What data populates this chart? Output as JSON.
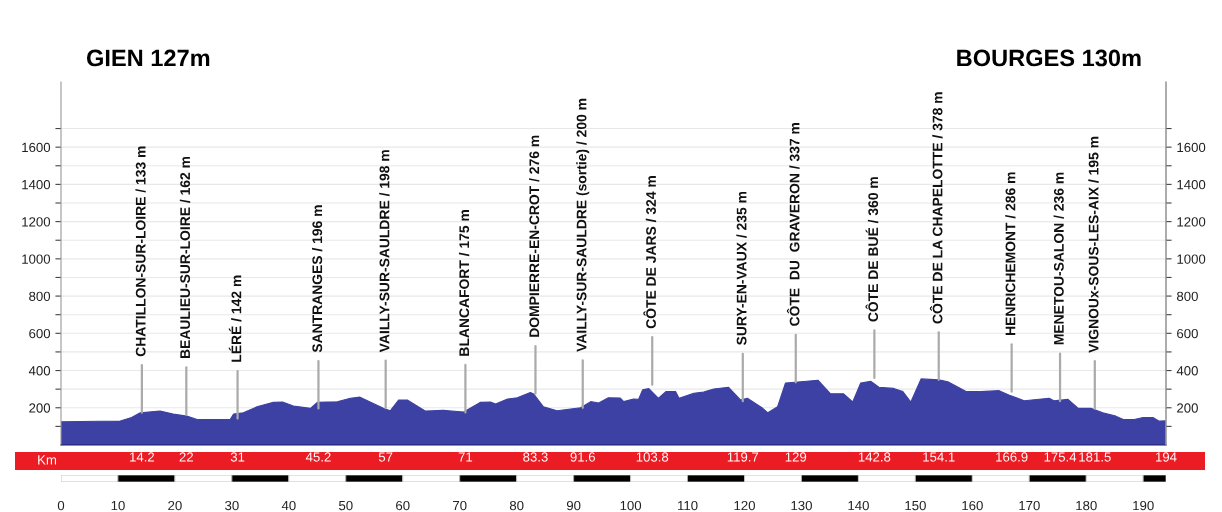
{
  "chart_data": {
    "type": "area",
    "x": [
      0,
      10.4,
      12.4,
      13.9,
      17.4,
      19.7,
      22.1,
      23.9,
      29.7,
      30.3,
      32,
      34.4,
      37.3,
      38.9,
      40.8,
      43.8,
      45,
      48.5,
      50.8,
      52.5,
      56.6,
      57.8,
      59.3,
      60.8,
      64,
      67.1,
      70.7,
      73.6,
      75.4,
      76.3,
      78.4,
      80.1,
      82.4,
      83,
      84.7,
      87.1,
      91.2,
      93,
      94.4,
      96.1,
      98.2,
      98.8,
      100.5,
      101.4,
      102.1,
      103.2,
      104.9,
      106.2,
      107.9,
      108.5,
      111.1,
      112.8,
      114.6,
      117.2,
      119.3,
      120.5,
      123.2,
      124.1,
      125.8,
      127.2,
      129.9,
      132.9,
      135.1,
      137.4,
      139,
      140.4,
      142.2,
      143.6,
      146.2,
      147.8,
      149.2,
      151,
      153.3,
      154.1,
      155.7,
      158.9,
      161.5,
      164.7,
      166.4,
      169.1,
      173.5,
      174.3,
      176.8,
      178.6,
      180.8,
      182.9,
      185.2,
      186.5,
      188.4,
      190,
      191.7,
      192.8,
      194
    ],
    "series": [
      {
        "color": "#3d41a3",
        "values": [
          125,
          129,
          148,
          173,
          182,
          166,
          155,
          137,
          137,
          166,
          173,
          205,
          229,
          231,
          209,
          197,
          229,
          232,
          251,
          257,
          197,
          184,
          242,
          242,
          182,
          186,
          177,
          229,
          231,
          220,
          247,
          254,
          282,
          274,
          205,
          184,
          200,
          233,
          226,
          254,
          252,
          233,
          247,
          245,
          296,
          303,
          251,
          287,
          287,
          251,
          278,
          284,
          301,
          310,
          242,
          251,
          197,
          173,
          205,
          333,
          340,
          348,
          275,
          275,
          231,
          333,
          342,
          310,
          304,
          287,
          231,
          355,
          351,
          350,
          340,
          287,
          287,
          292,
          269,
          238,
          251,
          238,
          245,
          197,
          197,
          173,
          155,
          137,
          137,
          148,
          148,
          128,
          130
        ]
      }
    ],
    "xlim": [
      0,
      194
    ],
    "ylim": [
      0,
      1950
    ],
    "xticks": [
      0,
      10,
      20,
      30,
      40,
      50,
      60,
      70,
      80,
      90,
      100,
      110,
      120,
      130,
      140,
      150,
      160,
      170,
      180,
      190
    ],
    "yticks": [
      {
        "value": 100,
        "label": null
      },
      200,
      {
        "value": 300,
        "label": null
      },
      400,
      {
        "value": 500,
        "label": null
      },
      600,
      {
        "value": 700,
        "label": null
      },
      800,
      {
        "value": 900,
        "label": null
      },
      1000,
      {
        "value": 1100,
        "label": null
      },
      1200,
      {
        "value": 1300,
        "label": null
      },
      1400,
      {
        "value": 1500,
        "label": null
      },
      1600,
      {
        "value": 1700,
        "label": null
      }
    ],
    "y2lim": [
      0,
      1950
    ],
    "y2ticks": [
      {
        "value": 100,
        "label": null
      },
      200,
      {
        "value": 300,
        "label": null
      },
      400,
      {
        "value": 500,
        "label": null
      },
      600,
      {
        "value": 700,
        "label": null
      },
      800,
      {
        "value": 900,
        "label": null
      },
      1000,
      {
        "value": 1100,
        "label": null
      },
      1200,
      {
        "value": 1300,
        "label": null
      },
      1400,
      {
        "value": 1500,
        "label": null
      },
      1600,
      {
        "value": 1700,
        "label": null
      }
    ],
    "x2lim": [
      0,
      194
    ],
    "x2ticks": [
      14.2,
      22,
      31,
      45.2,
      57,
      71,
      83.3,
      91.6,
      103.8,
      119.7,
      129,
      142.8,
      154.1,
      166.9,
      175.4,
      181.5,
      194
    ],
    "x2label": "Km",
    "grid": "y",
    "annotations": [
      "GIEN 127m",
      {
        "text": "CHATILLON-SUR-LOIRE / 133 m",
        "x": 14.2
      },
      {
        "text": "BEAULIEU-SUR-LOIRE / 162 m",
        "x": 22,
        "y": 162
      },
      {
        "text": "LÉRÉ / 142 m",
        "x": 31,
        "y": 142
      },
      {
        "text": "SANTRANGES / 196 m",
        "x": 45.2,
        "y": 196
      },
      {
        "text": "VAILLY-SUR-SAULDRE / 198 m",
        "x": 57,
        "y": 198
      },
      {
        "text": "BLANCAFORT / 175 m",
        "x": 71,
        "y": 175
      },
      {
        "text": "DOMPIERRE-EN-CROT / 276 m",
        "x": 83.3,
        "y": 276
      },
      {
        "text": "VAILLY-SUR-SAULDRE (sortie) / 200 m",
        "x": 91.6,
        "y": 200
      },
      {
        "text": "CÔTE DE JARS / 324 m",
        "x": 103.8,
        "y": 324
      },
      {
        "text": "SURY-EN-VAUX / 235 m",
        "x": 119.7,
        "y": 235
      },
      {
        "text": "CÔTE  DU  GRAVERON / 337 m",
        "x": 129,
        "y": 337
      },
      {
        "text": "CÔTE DE BUÉ / 360 m",
        "x": 142.8,
        "y": 360
      },
      {
        "text": "CÔTE DE LA CHAPELOTTE / 378 m",
        "x": 154.1
      },
      {
        "text": "HENRICHEMONT / 286 m",
        "x": 166.9,
        "y": 286
      },
      {
        "text": "MENETOU-SALON / 236 m",
        "x": 175.4,
        "y": 236
      },
      {
        "text": "VIGNOUx-SOUS-LES-AIX / 195 m",
        "x": 181.5,
        "y": 195
      },
      "BOURGES 130m"
    ]
  }
}
